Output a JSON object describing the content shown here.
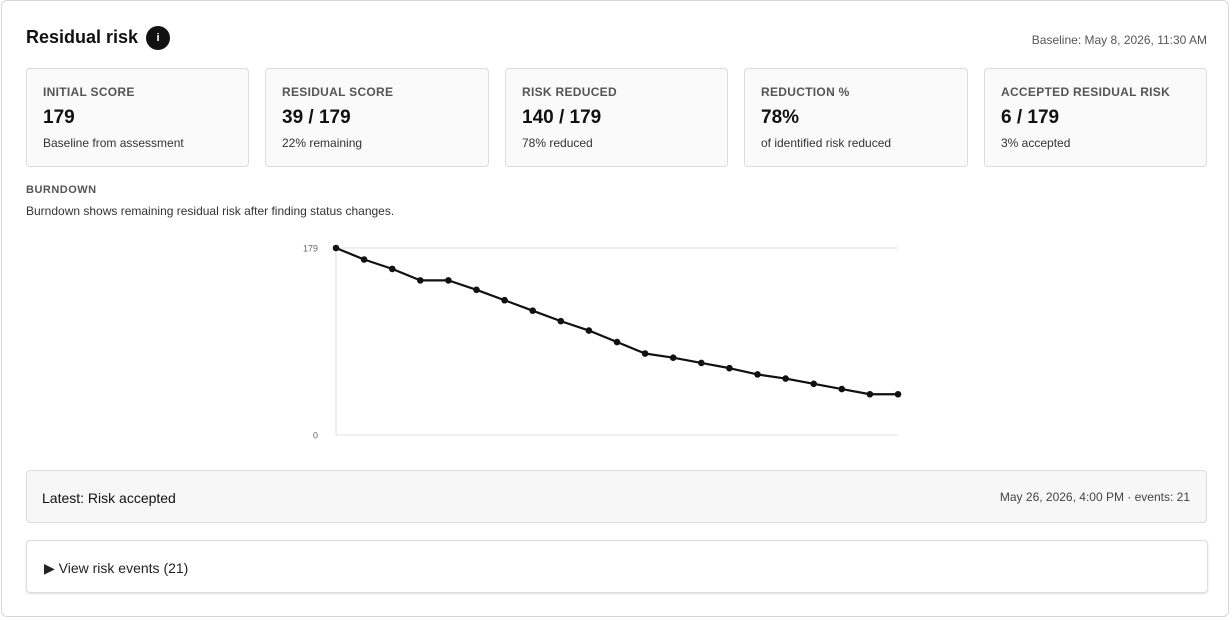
{
  "header": {
    "title": "Residual risk",
    "info_icon": "i",
    "baseline": "Baseline: May 8, 2026, 11:30 AM"
  },
  "stats": [
    {
      "label": "INITIAL SCORE",
      "value": "179",
      "note": "Baseline from assessment"
    },
    {
      "label": "RESIDUAL SCORE",
      "value": "39 / 179",
      "note": "22% remaining"
    },
    {
      "label": "RISK REDUCED",
      "value": "140 / 179",
      "note": "78% reduced"
    },
    {
      "label": "REDUCTION %",
      "value": "78%",
      "note": "of identified risk reduced"
    },
    {
      "label": "ACCEPTED RESIDUAL RISK",
      "value": "6 / 179",
      "note": "3% accepted"
    }
  ],
  "burndown": {
    "heading": "BURNDOWN",
    "description": "Burndown shows remaining residual risk after finding status changes."
  },
  "chart_data": {
    "type": "line",
    "color": "#111111",
    "values": [
      179,
      168,
      159,
      148,
      148,
      139,
      129,
      119,
      109,
      100,
      89,
      78,
      74,
      69,
      64,
      58,
      54,
      49,
      44,
      39,
      39
    ],
    "ylim": [
      0,
      179
    ],
    "yticks": [
      0,
      179
    ],
    "grid": true
  },
  "latest": {
    "label": "Latest: Risk accepted",
    "meta": "May 26, 2026, 4:00 PM · events: 21"
  },
  "events_toggle": "▶ View risk events (21)"
}
